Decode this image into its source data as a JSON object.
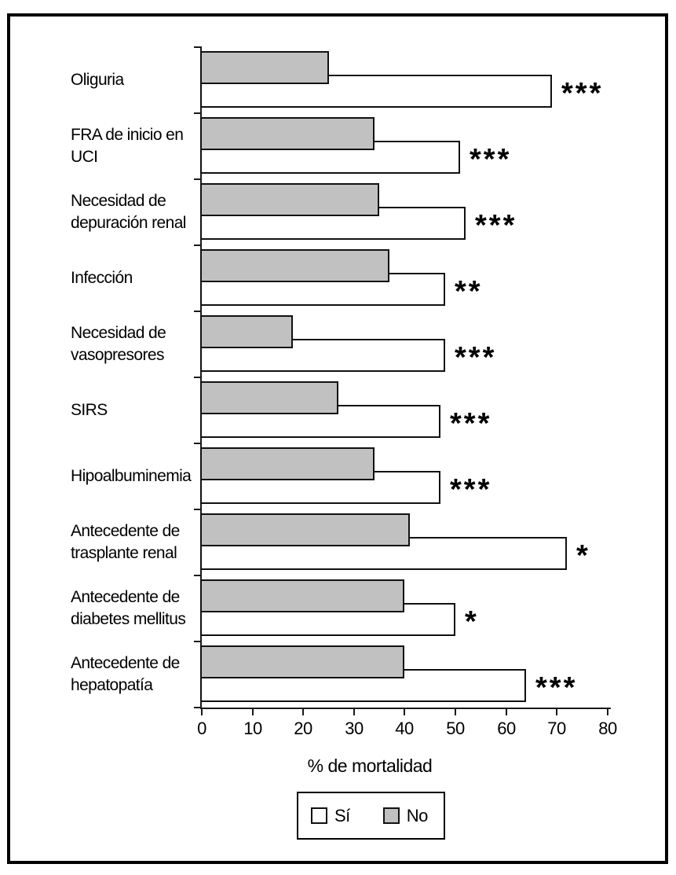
{
  "chart_data": {
    "type": "bar",
    "orientation": "horizontal",
    "title": "",
    "xlabel": "% de mortalidad",
    "ylabel": "",
    "xlim": [
      0,
      80
    ],
    "xticks": [
      0,
      10,
      20,
      30,
      40,
      50,
      60,
      70,
      80
    ],
    "grid": false,
    "legend_position": "bottom",
    "categories": [
      "Oliguria",
      "FRA de inicio en\nUCI",
      "Necesidad de\ndepuración renal",
      "Infección",
      "Necesidad de\nvasopresores",
      "SIRS",
      "Hipoalbuminemia",
      "Antecedente de\ntrasplante renal",
      "Antecedente de\ndiabetes mellitus",
      "Antecedente de\nhepatopatía"
    ],
    "series": [
      {
        "name": "Sí",
        "color": "#FFFFFF",
        "values": [
          69,
          51,
          52,
          48,
          48,
          47,
          47,
          72,
          50,
          64
        ]
      },
      {
        "name": "No",
        "color": "#C1C1C1",
        "values": [
          25,
          34,
          35,
          37,
          18,
          27,
          34,
          41,
          40,
          40
        ]
      }
    ],
    "significance": [
      "***",
      "***",
      "***",
      "**",
      "***",
      "***",
      "***",
      "*",
      "*",
      "***"
    ]
  },
  "colors": {
    "bar_si": "#FFFFFF",
    "bar_no": "#C1C1C1",
    "bar_border": "#111111",
    "axis": "#1a1a1a",
    "frame_border": "#000000"
  }
}
